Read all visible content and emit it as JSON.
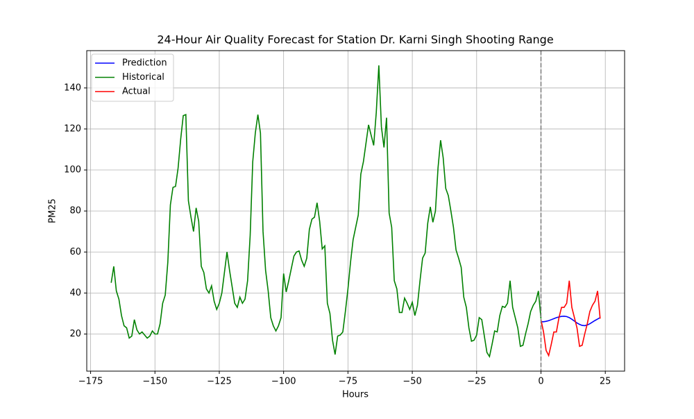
{
  "chart_data": {
    "type": "line",
    "title": "24-Hour Air Quality Forecast for Station Dr. Karni Singh Shooting Range",
    "x_label": "Hours",
    "y_label": "PM25",
    "xlim": [
      -176.5,
      32.5
    ],
    "ylim": [
      1.9,
      158.2
    ],
    "xticks": [
      {
        "value": -175,
        "label": "−175"
      },
      {
        "value": -150,
        "label": "−150"
      },
      {
        "value": -125,
        "label": "−125"
      },
      {
        "value": -100,
        "label": "−100"
      },
      {
        "value": -75,
        "label": "−75"
      },
      {
        "value": -50,
        "label": "−50"
      },
      {
        "value": -25,
        "label": "−25"
      },
      0,
      25
    ],
    "yticks": [
      20,
      40,
      60,
      80,
      100,
      120,
      140
    ],
    "grid": true,
    "legend": "upper-left",
    "vline": {
      "x": 0,
      "color": "#808080"
    },
    "series": [
      {
        "name": "Prediction",
        "color": "#0000ff",
        "x": [
          0,
          1,
          2,
          3,
          4,
          5,
          6,
          7,
          8,
          9,
          10,
          11,
          12,
          13,
          14,
          15,
          16,
          17,
          18,
          19,
          20,
          21,
          22,
          23
        ],
        "values": [
          26,
          26,
          26.2,
          26.5,
          27,
          27.5,
          28,
          28.3,
          28.6,
          28.7,
          28.5,
          28,
          27.2,
          26.3,
          25.4,
          24.7,
          24.2,
          24.1,
          24.4,
          25,
          25.8,
          26.6,
          27.3,
          28
        ]
      },
      {
        "name": "Historical",
        "color": "#008000",
        "x": [
          -167,
          -166,
          -165,
          -164,
          -163,
          -162,
          -161,
          -160,
          -159,
          -158,
          -157,
          -156,
          -155,
          -154,
          -153,
          -152,
          -151,
          -150,
          -149,
          -148,
          -147,
          -146,
          -145,
          -144,
          -143,
          -142,
          -141,
          -140,
          -139,
          -138,
          -137,
          -136,
          -135,
          -134,
          -133,
          -132,
          -131,
          -130,
          -129,
          -128,
          -127,
          -126,
          -125,
          -124,
          -123,
          -122,
          -121,
          -120,
          -119,
          -118,
          -117,
          -116,
          -115,
          -114,
          -113,
          -112,
          -111,
          -110,
          -109,
          -108,
          -107,
          -106,
          -105,
          -104,
          -103,
          -102,
          -101,
          -100,
          -99,
          -98,
          -97,
          -96,
          -95,
          -94,
          -93,
          -92,
          -91,
          -90,
          -89,
          -88,
          -87,
          -86,
          -85,
          -84,
          -83,
          -82,
          -81,
          -80,
          -79,
          -78,
          -77,
          -76,
          -75,
          -74,
          -73,
          -72,
          -71,
          -70,
          -69,
          -68,
          -67,
          -66,
          -65,
          -64,
          -63,
          -62,
          -61,
          -60,
          -59,
          -58,
          -57,
          -56,
          -55,
          -54,
          -53,
          -52,
          -51,
          -50,
          -49,
          -48,
          -47,
          -46,
          -45,
          -44,
          -43,
          -42,
          -41,
          -40,
          -39,
          -38,
          -37,
          -36,
          -35,
          -34,
          -33,
          -32,
          -31,
          -30,
          -29,
          -28,
          -27,
          -26,
          -25,
          -24,
          -23,
          -22,
          -21,
          -20,
          -19,
          -18,
          -17,
          -16,
          -15,
          -14,
          -13,
          -12,
          -11,
          -10,
          -9,
          -8,
          -7,
          -6,
          -5,
          -4,
          -3,
          -2,
          -1,
          0
        ],
        "values": [
          45,
          53,
          41,
          37,
          29,
          24,
          23,
          18,
          19,
          27,
          22,
          20,
          21,
          19.5,
          18,
          19,
          21.5,
          20,
          20,
          25,
          35,
          39,
          55,
          83,
          91.5,
          92,
          101,
          115,
          126.5,
          127,
          85,
          77,
          70,
          81.5,
          75,
          53,
          50,
          42,
          40,
          43.5,
          36,
          32,
          35,
          40,
          50,
          60,
          51,
          43,
          35,
          33,
          38,
          35,
          37,
          46,
          68,
          104,
          118,
          127,
          118,
          70,
          51,
          41,
          28,
          24,
          21.5,
          24,
          28,
          49.5,
          40.5,
          46,
          52,
          58,
          60,
          60.5,
          56,
          53,
          57,
          71,
          76,
          77,
          84,
          75,
          61.5,
          63,
          35,
          30,
          17,
          10,
          19,
          19.5,
          21,
          31,
          42,
          55,
          66,
          72,
          78,
          98,
          104,
          113,
          122,
          117,
          112,
          128,
          151,
          121,
          111,
          125.5,
          79,
          72,
          46,
          42,
          30.5,
          30.5,
          37.5,
          35,
          32,
          35.5,
          29,
          34,
          46,
          57,
          59.5,
          74,
          82,
          74.5,
          80,
          101,
          114.5,
          106,
          91,
          87.5,
          80,
          72,
          61,
          57,
          52.5,
          38,
          33,
          23,
          16.5,
          17,
          19.5,
          28,
          27,
          19,
          11,
          9,
          15,
          21.5,
          21,
          29,
          33.5,
          33,
          35,
          46,
          33,
          28,
          23,
          14,
          14.5,
          20,
          25,
          31,
          34,
          36,
          41,
          27.5
        ]
      },
      {
        "name": "Actual",
        "color": "#ff0000",
        "x": [
          0,
          1,
          2,
          3,
          4,
          5,
          6,
          7,
          8,
          9,
          10,
          11,
          12,
          13,
          14,
          15,
          16,
          17,
          18,
          19,
          20,
          21,
          22,
          23
        ],
        "values": [
          27,
          21,
          12,
          9.5,
          15,
          21,
          21,
          28,
          33,
          33,
          35,
          46,
          33,
          28,
          23,
          14,
          14.5,
          20,
          25,
          31,
          34,
          36,
          41,
          27.5
        ]
      }
    ]
  }
}
